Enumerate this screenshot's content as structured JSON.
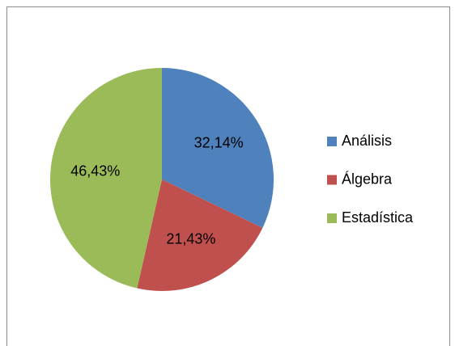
{
  "chart_data": {
    "type": "pie",
    "categories": [
      "Análisis",
      "Álgebra",
      "Estadística"
    ],
    "values": [
      32.14,
      21.43,
      46.43
    ],
    "value_labels": [
      "32,14%",
      "21,43%",
      "46,43%"
    ],
    "colors": [
      "#4f81bd",
      "#c0504d",
      "#9bbb59"
    ],
    "legend": "right"
  }
}
